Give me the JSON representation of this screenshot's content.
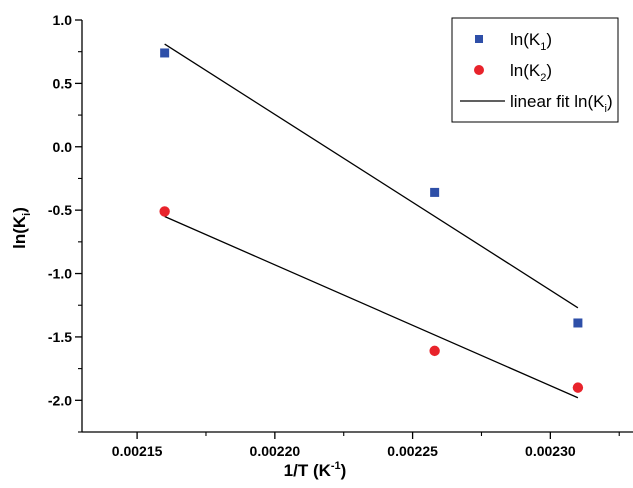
{
  "chart_data": {
    "type": "scatter",
    "xlabel": "1/T (K",
    "xlabel_sup": "-1",
    "xlabel_close": ")",
    "ylabel": "ln(K",
    "ylabel_sub": "i",
    "ylabel_close": ")",
    "xlim": [
      0.00213,
      0.00233
    ],
    "ylim": [
      -2.25,
      1.0
    ],
    "xticks": [
      0.00215,
      0.0022,
      0.00225,
      0.0023
    ],
    "xtick_labels": [
      "0.00215",
      "0.00220",
      "0.00225",
      "0.00230"
    ],
    "yticks": [
      1.0,
      0.5,
      0.0,
      -0.5,
      -1.0,
      -1.5,
      -2.0
    ],
    "ytick_labels": [
      "1.0",
      "0.5",
      "0.0",
      "-0.5",
      "-1.0",
      "-1.5",
      "-2.0"
    ],
    "grid": false,
    "legend_position": "top-right",
    "series": [
      {
        "name": "ln(K1)",
        "label_main": "ln(K",
        "label_sub": "1",
        "label_close": ")",
        "marker": "square",
        "color": "#2e4fa8",
        "x": [
          0.00216,
          0.002258,
          0.00231
        ],
        "y": [
          0.74,
          -0.36,
          -1.39
        ]
      },
      {
        "name": "ln(K2)",
        "label_main": "ln(K",
        "label_sub": "2",
        "label_close": ")",
        "marker": "circle",
        "color": "#e8232b",
        "x": [
          0.00216,
          0.002258,
          0.00231
        ],
        "y": [
          -0.51,
          -1.61,
          -1.9
        ]
      }
    ],
    "fits": [
      {
        "name": "linear fit ln(Ki)",
        "label_main": "linear fit ln(K",
        "label_sub": "i",
        "label_close": ")",
        "color": "#000000",
        "lines": [
          {
            "x": [
              0.00216,
              0.00231
            ],
            "y": [
              0.81,
              -1.27
            ]
          },
          {
            "x": [
              0.00216,
              0.00231
            ],
            "y": [
              -0.55,
              -1.98
            ]
          }
        ]
      }
    ]
  }
}
